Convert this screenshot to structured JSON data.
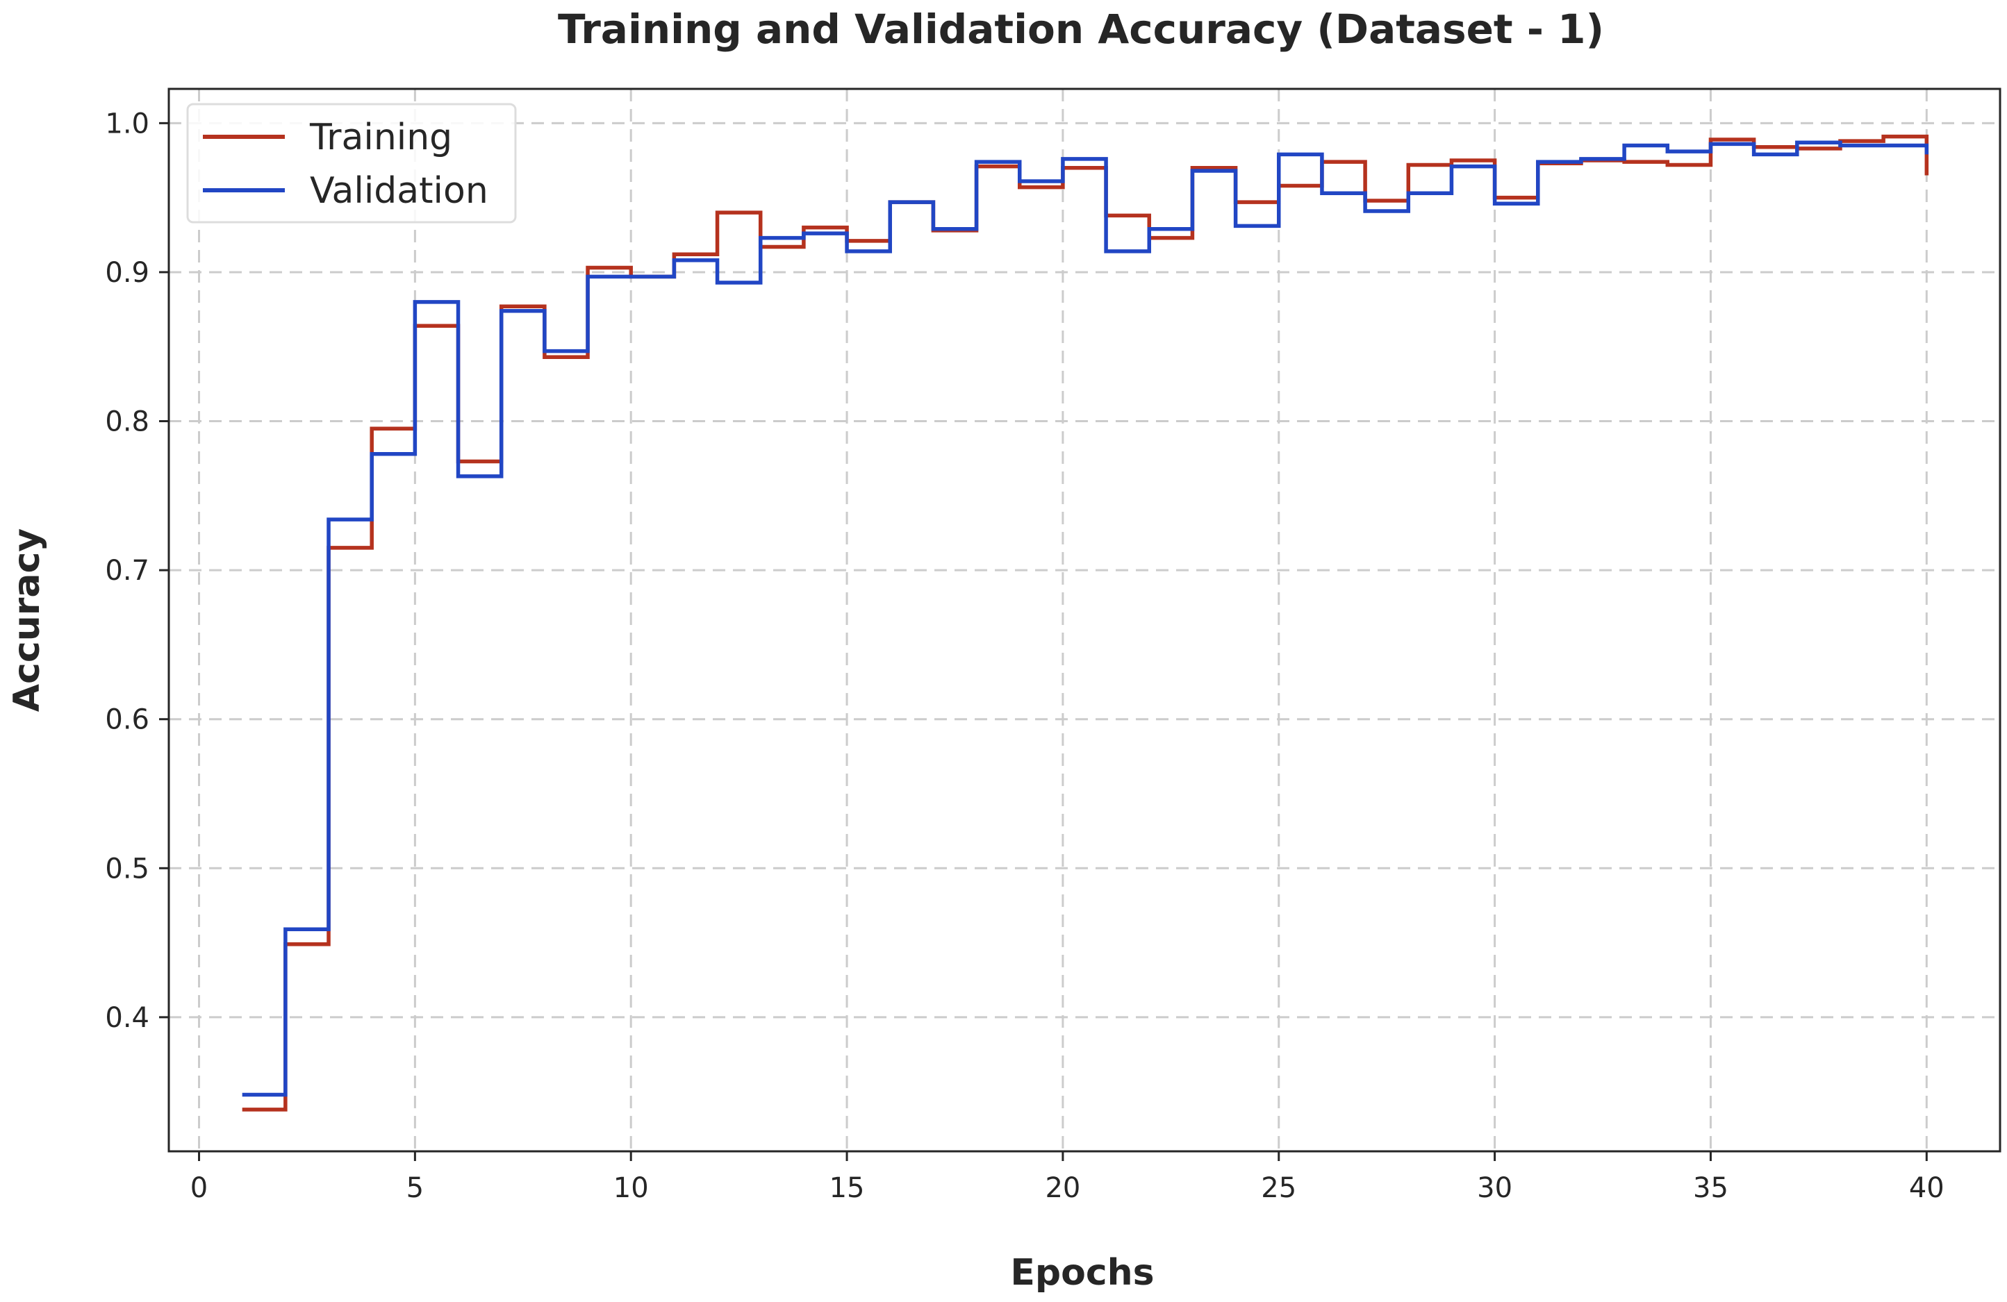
{
  "chart_data": {
    "type": "line",
    "step": "post",
    "title": "Training and Validation Accuracy (Dataset - 1)",
    "xlabel": "Epochs",
    "ylabel": "Accuracy",
    "xlim": [
      -0.7,
      41.7
    ],
    "ylim": [
      0.31,
      1.023
    ],
    "xticks": [
      0,
      5,
      10,
      15,
      20,
      25,
      30,
      35,
      40
    ],
    "xtick_labels": [
      "0",
      "5",
      "10",
      "15",
      "20",
      "25",
      "30",
      "35",
      "40"
    ],
    "yticks": [
      0.4,
      0.5,
      0.6,
      0.7,
      0.8,
      0.9,
      1.0
    ],
    "ytick_labels": [
      "0.4",
      "0.5",
      "0.6",
      "0.7",
      "0.8",
      "0.9",
      "1.0"
    ],
    "grid": true,
    "legend_position": "top-left",
    "x": [
      1,
      2,
      3,
      4,
      5,
      6,
      7,
      8,
      9,
      10,
      11,
      12,
      13,
      14,
      15,
      16,
      17,
      18,
      19,
      20,
      21,
      22,
      23,
      24,
      25,
      26,
      27,
      28,
      29,
      30,
      31,
      32,
      33,
      34,
      35,
      36,
      37,
      38,
      39,
      40
    ],
    "series": [
      {
        "name": "Training",
        "color": "#b5321e",
        "values": [
          0.338,
          0.449,
          0.715,
          0.795,
          0.864,
          0.773,
          0.877,
          0.843,
          0.903,
          0.897,
          0.912,
          0.94,
          0.917,
          0.93,
          0.921,
          0.947,
          0.928,
          0.971,
          0.957,
          0.97,
          0.938,
          0.923,
          0.97,
          0.947,
          0.958,
          0.974,
          0.948,
          0.972,
          0.975,
          0.95,
          0.973,
          0.975,
          0.974,
          0.972,
          0.989,
          0.984,
          0.983,
          0.988,
          0.991,
          0.965
        ]
      },
      {
        "name": "Validation",
        "color": "#2146c4",
        "values": [
          0.348,
          0.459,
          0.734,
          0.778,
          0.88,
          0.763,
          0.874,
          0.847,
          0.897,
          0.897,
          0.908,
          0.893,
          0.923,
          0.926,
          0.914,
          0.947,
          0.929,
          0.974,
          0.961,
          0.976,
          0.914,
          0.929,
          0.968,
          0.931,
          0.979,
          0.953,
          0.941,
          0.953,
          0.971,
          0.946,
          0.974,
          0.976,
          0.985,
          0.981,
          0.986,
          0.979,
          0.987,
          0.985,
          0.985,
          0.979
        ]
      }
    ]
  }
}
